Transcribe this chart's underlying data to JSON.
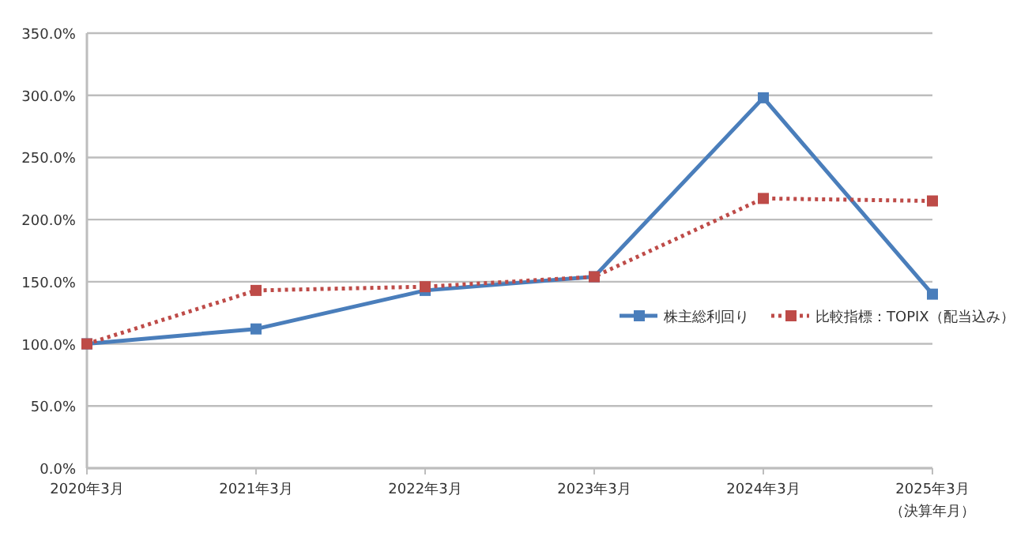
{
  "chart_data": {
    "type": "line",
    "categories": [
      "2020年3月",
      "2021年3月",
      "2022年3月",
      "2023年3月",
      "2024年3月",
      "2025年3月"
    ],
    "xlabel": "（決算年月）",
    "series": [
      {
        "name": "株主総利回り",
        "color": "#4a7ebb",
        "line_style": "solid",
        "values": [
          100,
          112,
          143,
          154,
          298,
          140
        ]
      },
      {
        "name": "比較指標：TOPIX（配当込み）",
        "color": "#be4b48",
        "line_style": "dotted",
        "values": [
          100,
          143,
          146,
          154,
          217,
          215
        ]
      }
    ],
    "ylim": [
      0,
      350
    ],
    "yticks": [
      {
        "value": 0,
        "label": "0.0%"
      },
      {
        "value": 50,
        "label": "50.0%"
      },
      {
        "value": 100,
        "label": "100.0%"
      },
      {
        "value": 150,
        "label": "150.0%"
      },
      {
        "value": 200,
        "label": "200.0%"
      },
      {
        "value": 250,
        "label": "250.0%"
      },
      {
        "value": 300,
        "label": "300.0%"
      },
      {
        "value": 350,
        "label": "350.0%"
      }
    ],
    "grid": "y",
    "marker": "square",
    "legend": "right"
  }
}
